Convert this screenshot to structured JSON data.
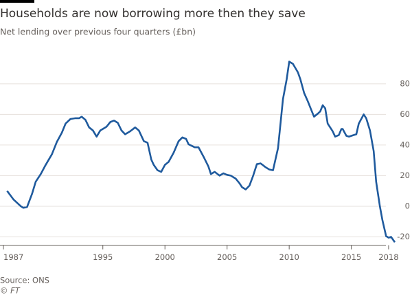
{
  "chart_data": {
    "type": "line",
    "title": "Households are now borrowing more then they save",
    "subtitle": "Net lending over previous four quarters (£bn)",
    "source": "Source: ONS",
    "credit": "© FT",
    "x": [
      1987.3,
      1987.8,
      1988.4,
      1988.6,
      1988.9,
      1989.3,
      1989.6,
      1990.0,
      1990.4,
      1990.9,
      1991.3,
      1991.7,
      1992.0,
      1992.4,
      1992.8,
      1993.1,
      1993.3,
      1993.6,
      1993.9,
      1994.2,
      1994.5,
      1994.8,
      1995.3,
      1995.6,
      1995.9,
      1996.2,
      1996.5,
      1996.8,
      1997.2,
      1997.6,
      1997.9,
      1998.3,
      1998.6,
      1998.9,
      1999.1,
      1999.4,
      1999.7,
      2000.0,
      2000.3,
      2000.7,
      2001.1,
      2001.4,
      2001.7,
      2001.9,
      2002.4,
      2002.7,
      2003.1,
      2003.5,
      2003.7,
      2004.0,
      2004.4,
      2004.7,
      2005.0,
      2005.3,
      2005.7,
      2006.0,
      2006.2,
      2006.5,
      2006.8,
      2007.1,
      2007.4,
      2007.7,
      2008.1,
      2008.4,
      2008.7,
      2009.1,
      2009.5,
      2009.8,
      2010.0,
      2010.3,
      2010.7,
      2010.9,
      2011.2,
      2011.5,
      2011.8,
      2012.0,
      2012.3,
      2012.5,
      2012.7,
      2012.9,
      2013.1,
      2013.5,
      2013.7,
      2014.0,
      2014.2,
      2014.3,
      2014.6,
      2014.8,
      2015.2,
      2015.4,
      2015.6,
      2016.0,
      2016.2,
      2016.5,
      2016.8,
      2017.0,
      2017.3,
      2017.5,
      2017.8,
      2018.0,
      2018.2,
      2018.5
    ],
    "series": [
      {
        "name": "Net lending",
        "color": "#1f5a9d",
        "values": [
          10,
          4.5,
          0,
          -1,
          -0.5,
          8,
          16,
          21,
          27,
          34,
          42,
          48,
          54,
          57,
          57.5,
          57.5,
          58.5,
          56.5,
          51.5,
          49.5,
          45.5,
          49.5,
          52,
          55,
          56,
          54.5,
          49.5,
          47,
          49,
          51.5,
          49.5,
          42.5,
          41.5,
          30.5,
          27,
          23.5,
          22.5,
          27,
          29,
          35,
          42.5,
          45,
          44,
          40.5,
          38.5,
          38.5,
          32.5,
          26,
          21,
          22.5,
          20,
          21.5,
          20.5,
          20,
          18,
          15,
          12.5,
          11,
          13.5,
          20,
          27.5,
          28,
          25.5,
          24,
          23.5,
          38,
          70,
          83,
          94.5,
          93,
          87.5,
          83,
          74,
          68.5,
          62.5,
          58.5,
          60.5,
          62,
          66,
          64,
          54,
          49,
          45.5,
          46.5,
          50.5,
          50.5,
          46,
          45.5,
          46.5,
          47,
          54,
          60,
          57.5,
          49.5,
          36,
          16,
          0,
          -9,
          -19.5,
          -20.5,
          -20,
          -23.5
        ]
      }
    ],
    "xlim": [
      1987,
      2019
    ],
    "xticks": [
      1987,
      1995,
      2000,
      2005,
      2010,
      2015,
      2018
    ],
    "ylim": [
      -25,
      97
    ],
    "yticks": [
      -20,
      0,
      20,
      40,
      60,
      80
    ],
    "grid": true
  }
}
